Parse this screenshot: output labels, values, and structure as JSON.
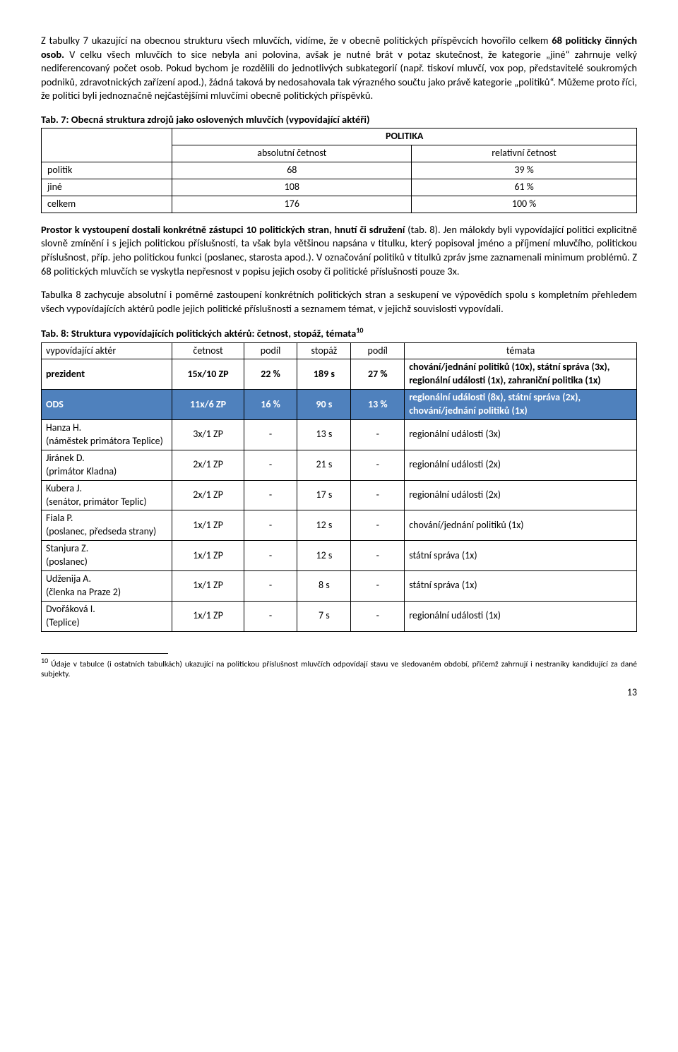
{
  "para1_a": "Z tabulky 7 ukazující na obecnou strukturu všech mluvčích, vidíme, že v obecně politických příspěvcích hovořilo celkem ",
  "para1_b": "68 politicky činných osob.",
  "para1_c": " V celku všech mluvčích to sice nebyla ani polovina, avšak je nutné brát v potaz skutečnost, že kategorie „jiné“ zahrnuje velký nediferencovaný počet osob. Pokud bychom je rozdělili do jednotlivých subkategorií (např. tiskoví mluvčí, vox pop, představitelé soukromých podniků, zdravotnických zařízení apod.), žádná taková by nedosahovala tak výrazného součtu jako právě kategorie „politiků“. Můžeme proto říci, že politici byli jednoznačně nejčastějšími mluvčími obecně politických příspěvků.",
  "tab7_caption": "Tab. 7: Obecná struktura zdrojů jako oslovených mluvčích (vypovídající aktéři)",
  "tab7_group": "POLITIKA",
  "tab7_col1": "absolutní četnost",
  "tab7_col2": "relativní četnost",
  "tab7_r1_l": "politik",
  "tab7_r1_a": "68",
  "tab7_r1_b": "39 %",
  "tab7_r2_l": "jiné",
  "tab7_r2_a": "108",
  "tab7_r2_b": "61 %",
  "tab7_r3_l": "celkem",
  "tab7_r3_a": "176",
  "tab7_r3_b": "100 %",
  "para2_a": "Prostor k vystoupení dostali konkrétně zástupci 10 politických stran, hnutí či sdružení",
  "para2_b": " (tab. 8). Jen málokdy byli vypovídající politici explicitně slovně zmínění i s jejich politickou příslušností, ta však byla většinou napsána v titulku, který popisoval jméno a příjmení mluvčího, politickou příslušnost, příp. jeho politickou funkci (poslanec, starosta apod.). V označování politiků v titulků zpráv jsme zaznamenali minimum problémů. Z 68 politických mluvčích se vyskytla nepřesnost v popisu jejich osoby či politické příslušnosti pouze 3x.",
  "para3": "Tabulka 8 zachycuje absolutní i poměrné zastoupení konkrétních politických stran a seskupení ve výpovědích spolu s kompletním přehledem všech vypovídajících aktérů podle jejich politické příslušnosti a seznamem témat, v jejichž souvislosti vypovídali.",
  "tab8_caption": "Tab. 8: Struktura vypovídajících politických aktérů: četnost, stopáž, témata",
  "tab8_sup": "10",
  "tab8_h1": "vypovídající aktér",
  "tab8_h2": "četnost",
  "tab8_h3": "podíl",
  "tab8_h4": "stopáž",
  "tab8_h5": "podíl",
  "tab8_h6": "témata",
  "pres_l": "prezident",
  "pres_c": "15x/10 ZP",
  "pres_p1": "22 %",
  "pres_s": "189 s",
  "pres_p2": "27 %",
  "pres_t": "chování/jednání politiků (10x), státní správa (3x), regionální události (1x), zahraniční politika (1x)",
  "ods_l": "ODS",
  "ods_c": "11x/6 ZP",
  "ods_p1": "16 %",
  "ods_s": "90 s",
  "ods_p2": "13 %",
  "ods_t": "regionální události (8x), státní správa (2x), chování/jednání politiků (1x)",
  "r1_l": "Hanza H.\n(náměstek primátora Teplice)",
  "r1_c": "3x/1 ZP",
  "r1_s": "13 s",
  "r1_t": "regionální události (3x)",
  "r2_l": "Jiránek D.\n(primátor Kladna)",
  "r2_c": "2x/1 ZP",
  "r2_s": "21 s",
  "r2_t": "regionální události (2x)",
  "r3_l": "Kubera J.\n(senátor, primátor Teplic)",
  "r3_c": "2x/1 ZP",
  "r3_s": "17 s",
  "r3_t": "regionální události (2x)",
  "r4_l": "Fiala P.\n(poslanec, předseda strany)",
  "r4_c": "1x/1 ZP",
  "r4_s": "12 s",
  "r4_t": "chování/jednání politiků (1x)",
  "r5_l": "Stanjura Z.\n(poslanec)",
  "r5_c": "1x/1 ZP",
  "r5_s": "12 s",
  "r5_t": "státní správa (1x)",
  "r6_l": "Udženija A.\n(členka na Praze 2)",
  "r6_c": "1x/1 ZP",
  "r6_s": "8 s",
  "r6_t": "státní správa (1x)",
  "r7_l": "Dvořáková I.\n(Teplice)",
  "r7_c": "1x/1 ZP",
  "r7_s": "7 s",
  "r7_t": "regionální události (1x)",
  "dash": "-",
  "footnote_num": "10",
  "footnote": " Údaje v tabulce (i ostatních tabulkách) ukazující na politickou příslušnost mluvčích odpovídají stavu ve sledovaném období, přičemž zahrnují i nestraníky kandidující za dané subjekty.",
  "pagenum": "13"
}
